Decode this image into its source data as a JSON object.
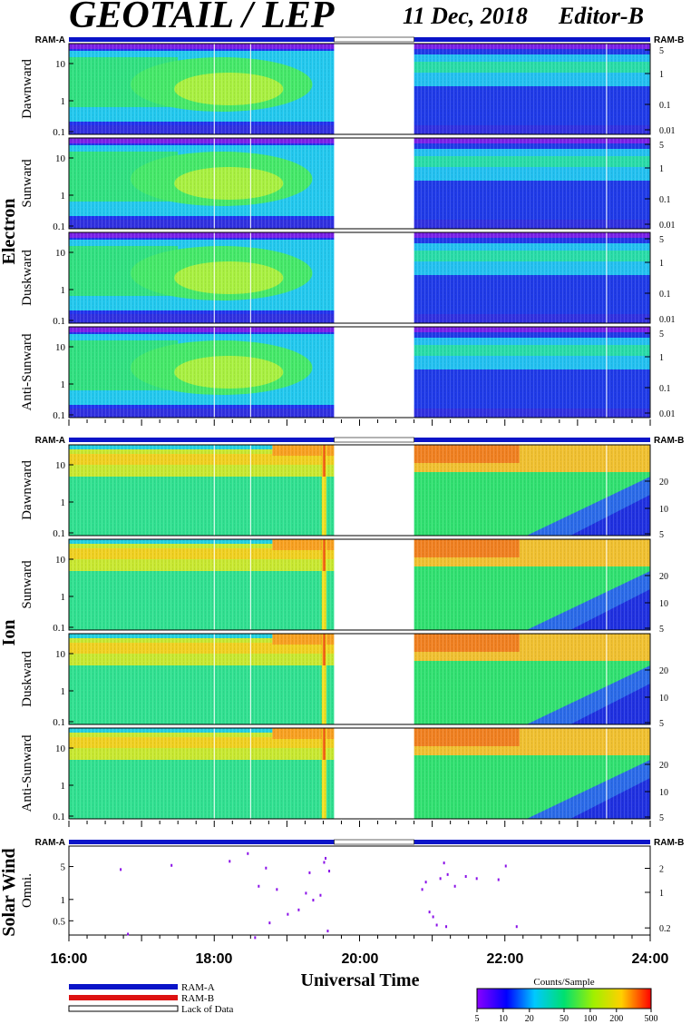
{
  "header": {
    "title": "GEOTAIL / LEP",
    "date": "11 Dec, 2018",
    "editor": "Editor-B"
  },
  "chart_data": {
    "type": "heatmap",
    "xlabel": "Universal Time",
    "x_ticks": [
      "16:00",
      "18:00",
      "20:00",
      "22:00",
      "24:00"
    ],
    "x_range_hours": [
      16,
      24
    ],
    "data_gap_hours": [
      19.65,
      20.75
    ],
    "ram_labels": {
      "left": "RAM-A",
      "right": "RAM-B"
    },
    "sections": [
      {
        "name": "Electron",
        "panels": [
          {
            "label": "Dawnward",
            "left_ticks": [
              "10",
              "1",
              "0.1"
            ],
            "right_ticks": [
              "5",
              "1",
              "0.1",
              "0.01"
            ]
          },
          {
            "label": "Sunward",
            "left_ticks": [
              "10",
              "1",
              "0.1"
            ],
            "right_ticks": [
              "5",
              "1",
              "0.1",
              "0.01"
            ]
          },
          {
            "label": "Duskward",
            "left_ticks": [
              "10",
              "1",
              "0.1"
            ],
            "right_ticks": [
              "5",
              "1",
              "0.1",
              "0.01"
            ]
          },
          {
            "label": "Anti-Sunward",
            "left_ticks": [
              "10",
              "1",
              "0.1"
            ],
            "right_ticks": [
              "5",
              "1",
              "0.1",
              "0.01"
            ]
          }
        ]
      },
      {
        "name": "Ion",
        "panels": [
          {
            "label": "Dawnward",
            "left_ticks": [
              "10",
              "1",
              "0.1"
            ],
            "right_ticks": [
              "20",
              "10",
              "5"
            ]
          },
          {
            "label": "Sunward",
            "left_ticks": [
              "10",
              "1",
              "0.1"
            ],
            "right_ticks": [
              "20",
              "10",
              "5"
            ]
          },
          {
            "label": "Duskward",
            "left_ticks": [
              "10",
              "1",
              "0.1"
            ],
            "right_ticks": [
              "20",
              "10",
              "5"
            ]
          },
          {
            "label": "Anti-Sunward",
            "left_ticks": [
              "10",
              "1",
              "0.1"
            ],
            "right_ticks": [
              "20",
              "10",
              "5"
            ]
          }
        ]
      },
      {
        "name": "Solar Wind",
        "panels": [
          {
            "label": "Omni.",
            "left_ticks": [
              "5",
              "1",
              "0.5"
            ],
            "right_ticks": [
              "2",
              "1",
              "0.2"
            ]
          }
        ]
      }
    ],
    "legend": {
      "items": [
        {
          "label": "RAM-A",
          "color": "#0a14c8"
        },
        {
          "label": "RAM-B",
          "color": "#dd1111"
        },
        {
          "label": "Lack of Data",
          "color": "#ffffff"
        }
      ]
    },
    "colorbar": {
      "title": "Counts/Sample",
      "ticks": [
        "5",
        "10",
        "20",
        "50",
        "100",
        "200",
        "500"
      ],
      "range": [
        5,
        500
      ],
      "scale": "log"
    },
    "solar_wind_points": [
      [
        16.7,
        3.2
      ],
      [
        17.4,
        3.8
      ],
      [
        16.8,
        0.22
      ],
      [
        18.2,
        4.5
      ],
      [
        18.45,
        6.2
      ],
      [
        18.55,
        0.19
      ],
      [
        18.6,
        1.6
      ],
      [
        18.7,
        3.4
      ],
      [
        18.75,
        0.35
      ],
      [
        18.85,
        1.4
      ],
      [
        19.0,
        0.5
      ],
      [
        19.15,
        0.6
      ],
      [
        19.25,
        1.2
      ],
      [
        19.3,
        2.8
      ],
      [
        19.35,
        0.9
      ],
      [
        19.45,
        1.1
      ],
      [
        19.5,
        4.3
      ],
      [
        19.52,
        5.1
      ],
      [
        19.57,
        3.0
      ],
      [
        19.55,
        0.25
      ],
      [
        20.85,
        1.4
      ],
      [
        20.9,
        1.9
      ],
      [
        20.95,
        0.55
      ],
      [
        21.0,
        0.45
      ],
      [
        21.05,
        0.32
      ],
      [
        21.1,
        2.2
      ],
      [
        21.15,
        4.2
      ],
      [
        21.2,
        2.6
      ],
      [
        21.18,
        0.3
      ],
      [
        21.3,
        1.6
      ],
      [
        21.45,
        2.4
      ],
      [
        21.6,
        2.2
      ],
      [
        21.9,
        2.1
      ],
      [
        22.0,
        3.7
      ],
      [
        22.15,
        0.3
      ]
    ]
  }
}
